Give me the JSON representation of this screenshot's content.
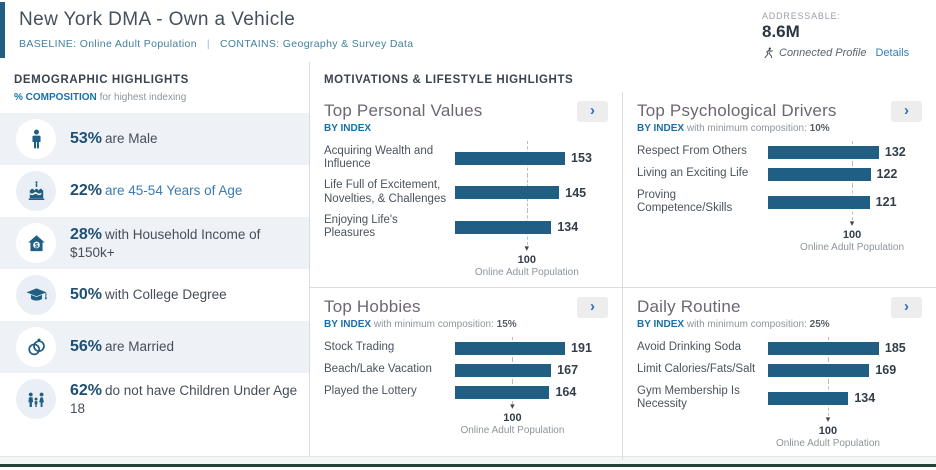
{
  "colors": {
    "accent": "#205f83",
    "blue_label": "#1a6fa8",
    "percent_blue": "#1f4e74",
    "highlight_blue": "#3b7cb0",
    "link": "#2e7fbe",
    "footer_line": "#24423a"
  },
  "header": {
    "title": "New York DMA - Own a Vehicle",
    "baseline": "BASELINE: Online Adult Population",
    "separator": "|",
    "contains": "CONTAINS: Geography & Survey Data",
    "addressable_label": "ADDRESSABLE:",
    "addressable_value": "8.6M",
    "connected_profile": "Connected Profile",
    "details_link": "Details"
  },
  "sidebar": {
    "title": "DEMOGRAPHIC HIGHLIGHTS",
    "subtitle_bold": "% COMPOSITION",
    "subtitle_rest": "for highest indexing",
    "items": [
      {
        "value": "53%",
        "text": "are Male",
        "icon": "male-icon",
        "highlight": false
      },
      {
        "value": "22%",
        "text": "are 45-54 Years of Age",
        "icon": "birthday-cake-icon",
        "highlight": true
      },
      {
        "value": "28%",
        "text": "with Household Income of $150k+",
        "icon": "house-income-icon",
        "highlight": false
      },
      {
        "value": "50%",
        "text": "with College Degree",
        "icon": "graduation-cap-icon",
        "highlight": false
      },
      {
        "value": "56%",
        "text": "are Married",
        "icon": "wedding-rings-icon",
        "highlight": false
      },
      {
        "value": "62%",
        "text": "do not have Children Under Age 18",
        "icon": "family-icon",
        "highlight": false
      }
    ]
  },
  "motivations": {
    "title": "MOTIVATIONS & LIFESTYLE HIGHLIGHTS",
    "cards": [
      {
        "title": "Top Personal Values",
        "subtitle_bold": "BY INDEX",
        "subtitle_rest": "",
        "subtitle_pct": "",
        "axis_value": "100",
        "axis_label": "Online Adult Population",
        "chart": {
          "type": "bar",
          "categories": [
            "Acquiring Wealth and Influence",
            "Life Full of Excitement, Novelties, & Challenges",
            "Enjoying Life's Pleasures"
          ],
          "values": [
            153,
            145,
            134
          ],
          "baseline": 100
        }
      },
      {
        "title": "Top Psychological Drivers",
        "subtitle_bold": "BY INDEX",
        "subtitle_rest": "with minimum composition:",
        "subtitle_pct": "10%",
        "axis_value": "100",
        "axis_label": "Online Adult Population",
        "chart": {
          "type": "bar",
          "categories": [
            "Respect From Others",
            "Living an Exciting Life",
            "Proving Competence/Skills"
          ],
          "values": [
            132,
            122,
            121
          ],
          "baseline": 100
        }
      },
      {
        "title": "Top Hobbies",
        "subtitle_bold": "BY INDEX",
        "subtitle_rest": "with minimum composition:",
        "subtitle_pct": "15%",
        "axis_value": "100",
        "axis_label": "Online Adult Population",
        "chart": {
          "type": "bar",
          "categories": [
            "Stock Trading",
            "Beach/Lake Vacation",
            "Played the Lottery"
          ],
          "values": [
            191,
            167,
            164
          ],
          "baseline": 100
        }
      },
      {
        "title": "Daily Routine",
        "subtitle_bold": "BY INDEX",
        "subtitle_rest": "with minimum composition:",
        "subtitle_pct": "25%",
        "axis_value": "100",
        "axis_label": "Online Adult Population",
        "chart": {
          "type": "bar",
          "categories": [
            "Avoid Drinking Soda",
            "Limit Calories/Fats/Salt",
            "Gym Membership Is Necessity"
          ],
          "values": [
            185,
            169,
            134
          ],
          "baseline": 100
        }
      }
    ]
  }
}
